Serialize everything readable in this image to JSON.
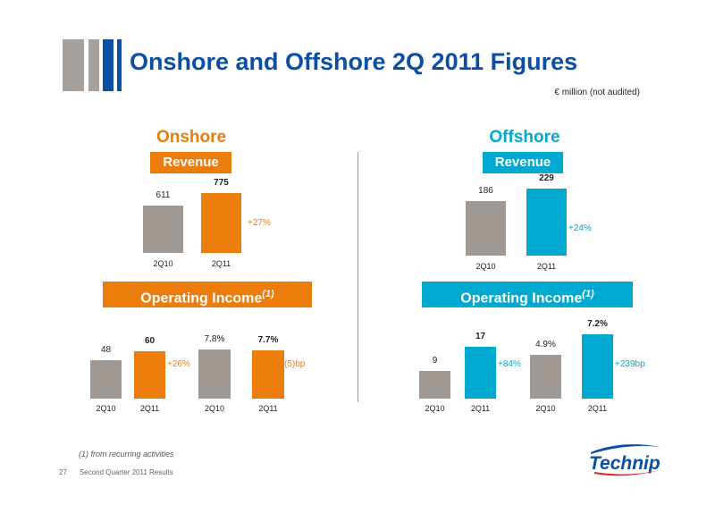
{
  "slide": {
    "title": "Onshore and Offshore 2Q 2011 Figures",
    "unit_note": "€ million (not audited)",
    "footnote": "(1) from recurring activities",
    "page_number": "27",
    "footer_text": "Second Quarter 2011 Results",
    "logo_text": "Technip"
  },
  "colors": {
    "title_blue": "#0b4fa3",
    "onshore_orange": "#ec7d0c",
    "offshore_cyan": "#00a9cf",
    "prior_grey": "#a09993"
  },
  "onshore": {
    "heading": "Onshore",
    "revenue_label": "Revenue",
    "op_label": "Operating Income",
    "op_sup": "(1)",
    "revenue_change": "+27%",
    "op_income_change": "+26%",
    "op_margin_change": "(5)bp"
  },
  "offshore": {
    "heading": "Offshore",
    "revenue_label": "Revenue",
    "op_label": "Operating Income",
    "op_sup": "(1)",
    "revenue_change": "+24%",
    "op_income_change": "+84%",
    "op_margin_change": "+239bp"
  },
  "chart_data": [
    {
      "type": "bar",
      "id": "onshore-revenue",
      "categories": [
        "2Q10",
        "2Q11"
      ],
      "values": [
        611,
        775
      ],
      "labels": [
        "611",
        "775"
      ]
    },
    {
      "type": "bar",
      "id": "offshore-revenue",
      "categories": [
        "2Q10",
        "2Q11"
      ],
      "values": [
        186,
        229
      ],
      "labels": [
        "186",
        "229"
      ]
    },
    {
      "type": "bar",
      "id": "onshore-op-income",
      "categories": [
        "2Q10",
        "2Q11"
      ],
      "values": [
        48,
        60
      ],
      "labels": [
        "48",
        "60"
      ]
    },
    {
      "type": "bar",
      "id": "onshore-op-margin",
      "categories": [
        "2Q10",
        "2Q11"
      ],
      "values": [
        7.8,
        7.7
      ],
      "labels": [
        "7.8%",
        "7.7%"
      ]
    },
    {
      "type": "bar",
      "id": "offshore-op-income",
      "categories": [
        "2Q10",
        "2Q11"
      ],
      "values": [
        9,
        17
      ],
      "labels": [
        "9",
        "17"
      ]
    },
    {
      "type": "bar",
      "id": "offshore-op-margin",
      "categories": [
        "2Q10",
        "2Q11"
      ],
      "values": [
        4.9,
        7.2
      ],
      "labels": [
        "4.9%",
        "7.2%"
      ]
    }
  ]
}
